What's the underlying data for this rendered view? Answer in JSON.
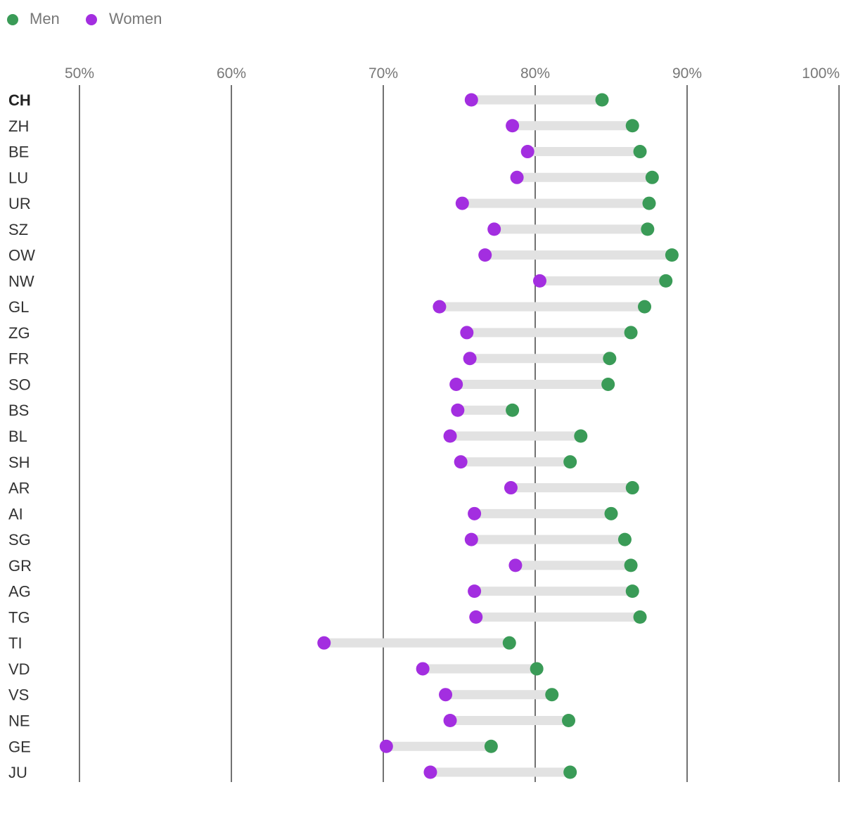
{
  "chart_data": {
    "type": "dumbbell",
    "title": "",
    "xlabel": "",
    "ylabel": "",
    "xlim": [
      50,
      100
    ],
    "x_ticks": [
      50,
      60,
      70,
      80,
      90,
      100
    ],
    "x_tick_labels": [
      "50%",
      "60%",
      "70%",
      "80%",
      "90%",
      "100%"
    ],
    "legend": {
      "placement": "top-left",
      "items": [
        {
          "key": "men",
          "label": "Men",
          "color": "#3a9b57"
        },
        {
          "key": "women",
          "label": "Women",
          "color": "#a32ee0"
        }
      ]
    },
    "bar_color": "#e2e2e2",
    "gridline_color": "#444444",
    "categories": [
      "CH",
      "ZH",
      "BE",
      "LU",
      "UR",
      "SZ",
      "OW",
      "NW",
      "GL",
      "ZG",
      "FR",
      "SO",
      "BS",
      "BL",
      "SH",
      "AR",
      "AI",
      "SG",
      "GR",
      "AG",
      "TG",
      "TI",
      "VD",
      "VS",
      "NE",
      "GE",
      "JU"
    ],
    "bold_categories": [
      "CH"
    ],
    "series": [
      {
        "name": "Men",
        "color": "#3a9b57",
        "values": [
          84.4,
          86.4,
          86.9,
          87.7,
          87.5,
          87.4,
          89.0,
          88.6,
          87.2,
          86.3,
          84.9,
          84.8,
          78.5,
          83.0,
          82.3,
          86.4,
          85.0,
          85.9,
          86.3,
          86.4,
          86.9,
          78.3,
          80.1,
          81.1,
          82.2,
          77.1,
          82.3
        ]
      },
      {
        "name": "Women",
        "color": "#a32ee0",
        "values": [
          75.8,
          78.5,
          79.5,
          78.8,
          75.2,
          77.3,
          76.7,
          80.3,
          73.7,
          75.5,
          75.7,
          74.8,
          74.9,
          74.4,
          75.1,
          78.4,
          76.0,
          75.8,
          78.7,
          76.0,
          76.1,
          66.1,
          72.6,
          74.1,
          74.4,
          70.2,
          73.1
        ]
      }
    ]
  }
}
